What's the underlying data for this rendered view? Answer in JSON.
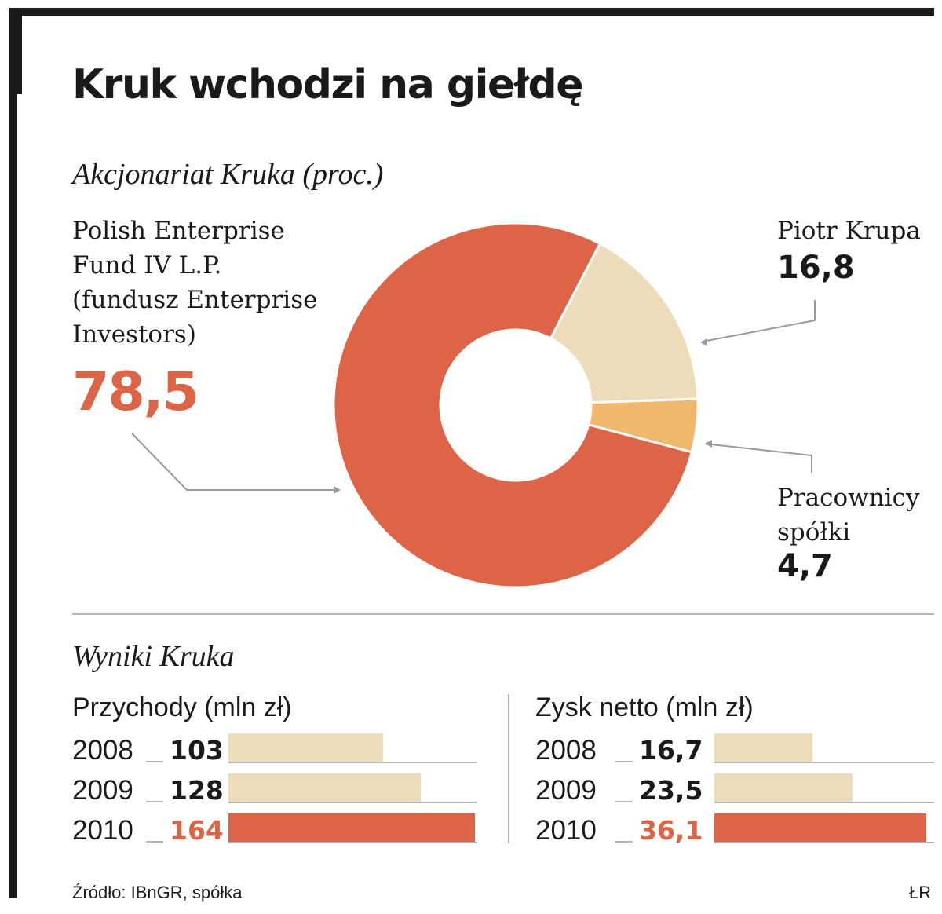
{
  "title": "Kruk wchodzi na giełdę",
  "colors": {
    "accent": "#dd6446",
    "light": "#ecdcb9",
    "orange": "#f0b86c",
    "frame": "#1a1a1a",
    "rule": "#b5b5b5"
  },
  "chart_data": [
    {
      "type": "pie",
      "title": "Akcjonariat Kruka (proc.)",
      "slices": [
        {
          "label": "Polish Enterprise Fund IV L.P. (fundusz Enterprise Investors)",
          "label_lines": [
            "Polish Enterprise",
            "Fund IV L.P.",
            "(fundusz Enterprise",
            "Investors)"
          ],
          "value": 78.5,
          "display": "78,5",
          "color": "#dd6446"
        },
        {
          "label": "Piotr Krupa",
          "label_lines": [
            "Piotr Krupa"
          ],
          "value": 16.8,
          "display": "16,8",
          "color": "#ecdcb9"
        },
        {
          "label": "Pracownicy spółki",
          "label_lines": [
            "Pracownicy",
            "spółki"
          ],
          "value": 4.7,
          "display": "4,7",
          "color": "#f0b86c"
        }
      ]
    },
    {
      "type": "bar",
      "title": "Przychody (mln zł)",
      "section": "Wyniki Kruka",
      "categories": [
        "2008",
        "2009",
        "2010"
      ],
      "values": [
        103,
        128,
        164
      ],
      "display": [
        "103",
        "128",
        "164"
      ],
      "highlight": [
        false,
        false,
        true
      ]
    },
    {
      "type": "bar",
      "title": "Zysk netto (mln zł)",
      "section": "Wyniki Kruka",
      "categories": [
        "2008",
        "2009",
        "2010"
      ],
      "values": [
        16.7,
        23.5,
        36.1
      ],
      "display": [
        "16,7",
        "23,5",
        "36,1"
      ],
      "highlight": [
        false,
        false,
        true
      ]
    }
  ],
  "results_heading": "Wyniki Kruka",
  "footer": {
    "source": "Źródło: IBnGR, spółka",
    "author": "ŁR"
  }
}
